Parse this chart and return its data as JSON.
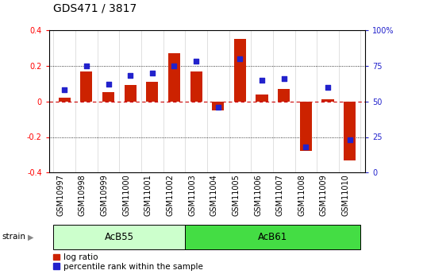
{
  "title": "GDS471 / 3817",
  "samples": [
    "GSM10997",
    "GSM10998",
    "GSM10999",
    "GSM11000",
    "GSM11001",
    "GSM11002",
    "GSM11003",
    "GSM11004",
    "GSM11005",
    "GSM11006",
    "GSM11007",
    "GSM11008",
    "GSM11009",
    "GSM11010"
  ],
  "log_ratio": [
    0.02,
    0.17,
    0.05,
    0.09,
    0.11,
    0.27,
    0.17,
    -0.05,
    0.35,
    0.04,
    0.07,
    -0.28,
    0.01,
    -0.33
  ],
  "percentile": [
    58,
    75,
    62,
    68,
    70,
    75,
    78,
    46,
    80,
    65,
    66,
    18,
    60,
    23
  ],
  "strains": [
    {
      "label": "AcB55",
      "start": 0,
      "end": 6,
      "color": "#ccffcc"
    },
    {
      "label": "AcB61",
      "start": 6,
      "end": 14,
      "color": "#44dd44"
    }
  ],
  "bar_color": "#cc2200",
  "dot_color": "#2222cc",
  "ylim": [
    -0.4,
    0.4
  ],
  "y2lim": [
    0,
    100
  ],
  "yticks": [
    -0.4,
    -0.2,
    0.0,
    0.2,
    0.4
  ],
  "y2ticks": [
    0,
    25,
    50,
    75,
    100
  ],
  "bg_color": "#ffffff",
  "title_fontsize": 10,
  "tick_fontsize": 7,
  "bar_width": 0.55,
  "dot_size": 18,
  "strain_label_fontsize": 8.5,
  "legend_fontsize": 7.5
}
